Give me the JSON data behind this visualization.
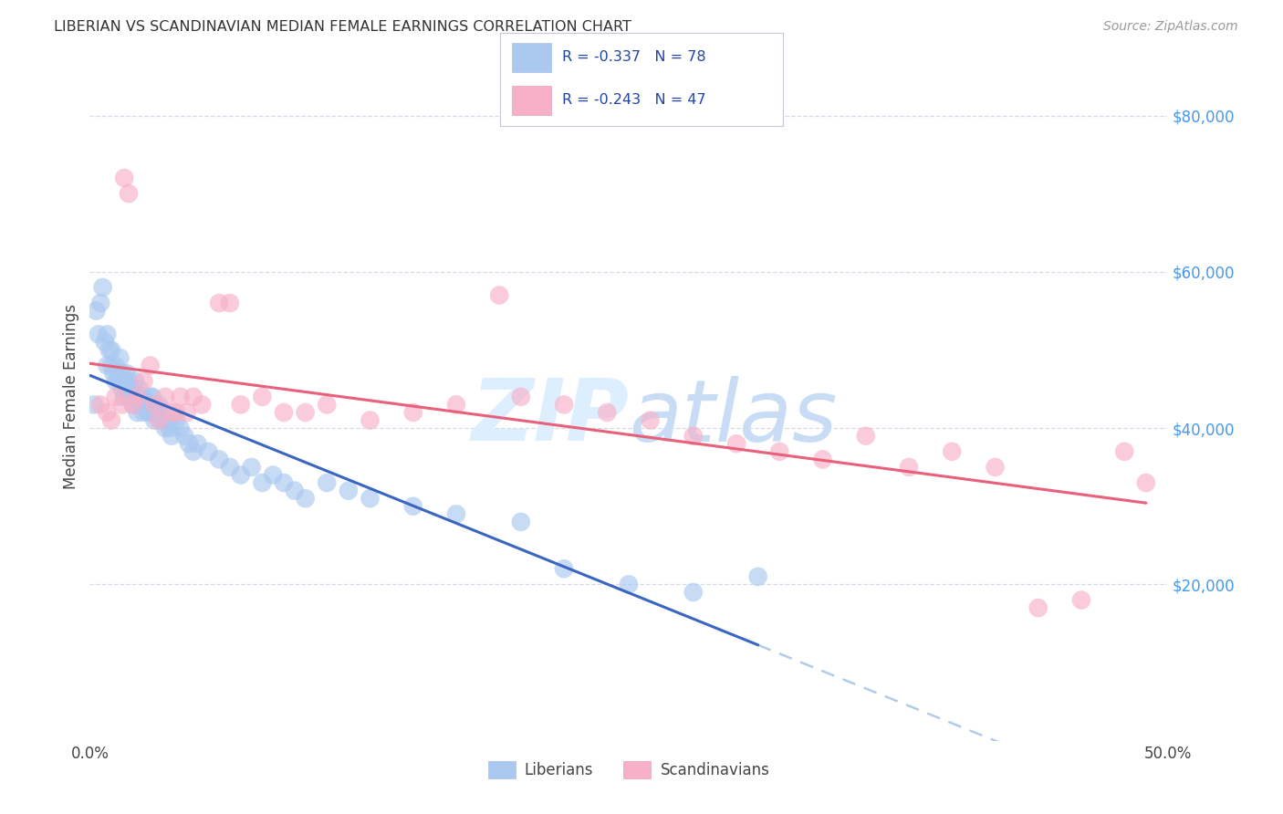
{
  "title": "LIBERIAN VS SCANDINAVIAN MEDIAN FEMALE EARNINGS CORRELATION CHART",
  "source": "Source: ZipAtlas.com",
  "ylabel": "Median Female Earnings",
  "xlim": [
    0.0,
    0.5
  ],
  "ylim": [
    0,
    88000
  ],
  "yticks": [
    20000,
    40000,
    60000,
    80000
  ],
  "ytick_labels": [
    "$20,000",
    "$40,000",
    "$60,000",
    "$80,000"
  ],
  "background_color": "#ffffff",
  "grid_color": "#d8d8e8",
  "liberian_color": "#aac8f0",
  "scandinavian_color": "#f8b0c8",
  "liberian_line_color": "#3a65c0",
  "scandinavian_line_color": "#e8607a",
  "dashed_line_color": "#b0cce8",
  "watermark_color": "#ddeeff",
  "liberian_x": [
    0.002,
    0.003,
    0.004,
    0.005,
    0.006,
    0.007,
    0.008,
    0.008,
    0.009,
    0.01,
    0.01,
    0.011,
    0.012,
    0.012,
    0.013,
    0.014,
    0.014,
    0.015,
    0.015,
    0.016,
    0.016,
    0.017,
    0.017,
    0.018,
    0.018,
    0.019,
    0.02,
    0.02,
    0.021,
    0.021,
    0.022,
    0.022,
    0.023,
    0.024,
    0.024,
    0.025,
    0.025,
    0.026,
    0.027,
    0.028,
    0.028,
    0.029,
    0.03,
    0.03,
    0.031,
    0.032,
    0.033,
    0.034,
    0.035,
    0.036,
    0.037,
    0.038,
    0.04,
    0.042,
    0.044,
    0.046,
    0.048,
    0.05,
    0.055,
    0.06,
    0.065,
    0.07,
    0.075,
    0.08,
    0.085,
    0.09,
    0.095,
    0.1,
    0.11,
    0.12,
    0.13,
    0.15,
    0.17,
    0.2,
    0.22,
    0.25,
    0.28,
    0.31
  ],
  "liberian_y": [
    43000,
    55000,
    52000,
    56000,
    58000,
    51000,
    48000,
    52000,
    50000,
    48000,
    50000,
    47000,
    46000,
    48000,
    47000,
    46000,
    49000,
    47000,
    45000,
    46000,
    44000,
    45000,
    47000,
    44000,
    46000,
    44000,
    45000,
    43000,
    46000,
    44000,
    42000,
    44000,
    45000,
    43000,
    44000,
    42000,
    44000,
    43000,
    42000,
    44000,
    42000,
    44000,
    43000,
    41000,
    42000,
    43000,
    41000,
    42000,
    40000,
    41000,
    40000,
    39000,
    41000,
    40000,
    39000,
    38000,
    37000,
    38000,
    37000,
    36000,
    35000,
    34000,
    35000,
    33000,
    34000,
    33000,
    32000,
    31000,
    33000,
    32000,
    31000,
    30000,
    29000,
    28000,
    22000,
    20000,
    19000,
    21000
  ],
  "scandinavian_x": [
    0.005,
    0.008,
    0.01,
    0.012,
    0.015,
    0.016,
    0.018,
    0.02,
    0.022,
    0.025,
    0.028,
    0.03,
    0.032,
    0.035,
    0.038,
    0.04,
    0.042,
    0.045,
    0.048,
    0.052,
    0.06,
    0.065,
    0.07,
    0.08,
    0.09,
    0.1,
    0.11,
    0.13,
    0.15,
    0.17,
    0.19,
    0.2,
    0.22,
    0.24,
    0.26,
    0.28,
    0.3,
    0.32,
    0.34,
    0.36,
    0.38,
    0.4,
    0.42,
    0.44,
    0.46,
    0.48,
    0.49
  ],
  "scandinavian_y": [
    43000,
    42000,
    41000,
    44000,
    43000,
    72000,
    70000,
    43000,
    44000,
    46000,
    48000,
    43000,
    41000,
    44000,
    42000,
    42000,
    44000,
    42000,
    44000,
    43000,
    56000,
    56000,
    43000,
    44000,
    42000,
    42000,
    43000,
    41000,
    42000,
    43000,
    57000,
    44000,
    43000,
    42000,
    41000,
    39000,
    38000,
    37000,
    36000,
    39000,
    35000,
    37000,
    35000,
    17000,
    18000,
    37000,
    33000
  ]
}
